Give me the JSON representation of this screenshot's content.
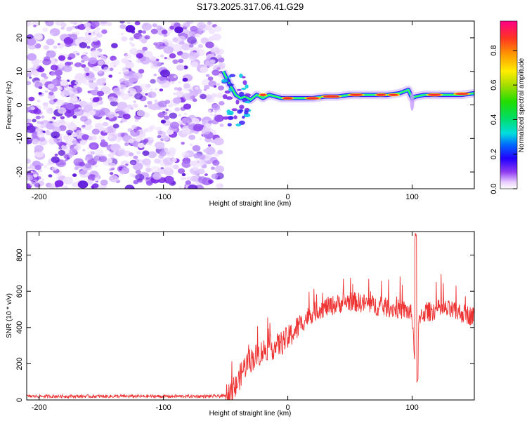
{
  "figure_title": "S173.2025.317.06.41.G29",
  "chart_data": [
    {
      "type": "heatmap",
      "title": "S173.2025.317.06.41.G29",
      "xlabel": "Height of straight line (km)",
      "ylabel": "Frequency (Hz)",
      "xlim": [
        -210,
        150
      ],
      "ylim": [
        -25,
        25
      ],
      "x_ticks": [
        -200,
        -100,
        0,
        100
      ],
      "y_ticks": [
        -20,
        -10,
        0,
        10,
        20
      ],
      "noise_region_x": [
        -210,
        -53
      ],
      "signal_trace": {
        "x": [
          -52,
          -48,
          -45,
          -42,
          -38,
          -34,
          -30,
          -25,
          -20,
          -15,
          -10,
          -5,
          0,
          10,
          20,
          30,
          40,
          50,
          60,
          70,
          80,
          90,
          97,
          100,
          103,
          110,
          120,
          130,
          140,
          150
        ],
        "y": [
          10,
          7,
          5,
          3,
          2,
          2.5,
          1.5,
          3,
          2,
          3,
          2.5,
          2,
          2,
          2,
          2,
          2.5,
          2.5,
          3,
          3,
          3,
          3,
          3.5,
          4.5,
          2,
          2.5,
          3,
          3,
          3,
          3,
          3.5
        ]
      },
      "colorbar": {
        "label": "Normalized spectral amplitude",
        "ticks": [
          0.0,
          0.2,
          0.4,
          0.6,
          0.8
        ],
        "range": [
          0,
          0.97
        ]
      }
    },
    {
      "type": "line",
      "xlabel": "Height of straight line (km)",
      "ylabel": "SNR (10 * v/v)",
      "xlim": [
        -210,
        150
      ],
      "ylim": [
        0,
        930
      ],
      "x_ticks": [
        -200,
        -100,
        0,
        100
      ],
      "y_ticks": [
        0,
        200,
        400,
        600,
        800
      ],
      "color": "#ee3333",
      "series": [
        {
          "name": "SNR",
          "x": [
            -210,
            -200,
            -180,
            -160,
            -140,
            -120,
            -100,
            -80,
            -60,
            -50,
            -44,
            -40,
            -36,
            -32,
            -28,
            -24,
            -20,
            -16,
            -12,
            -8,
            -4,
            0,
            4,
            8,
            12,
            16,
            20,
            25,
            30,
            35,
            40,
            45,
            50,
            55,
            60,
            65,
            70,
            75,
            80,
            85,
            90,
            95,
            100,
            103,
            106,
            110,
            115,
            120,
            125,
            130,
            135,
            140,
            145,
            150
          ],
          "y": [
            20,
            20,
            20,
            20,
            20,
            20,
            20,
            20,
            20,
            22,
            40,
            100,
            170,
            210,
            230,
            250,
            270,
            290,
            290,
            300,
            320,
            340,
            370,
            400,
            430,
            460,
            480,
            500,
            510,
            520,
            530,
            540,
            545,
            540,
            535,
            530,
            520,
            515,
            510,
            505,
            500,
            495,
            470,
            100,
            470,
            480,
            490,
            500,
            500,
            495,
            485,
            480,
            470,
            460
          ]
        }
      ]
    }
  ]
}
